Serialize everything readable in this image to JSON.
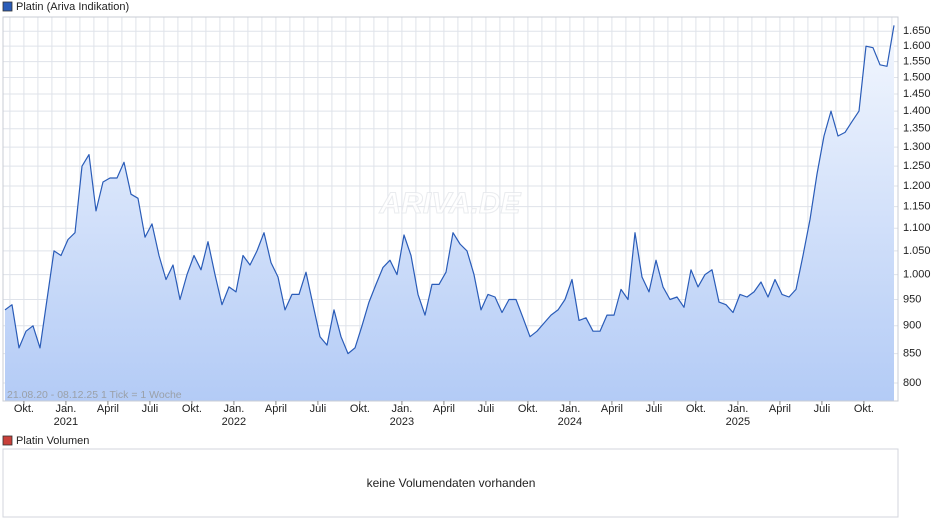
{
  "chart_data": {
    "type": "line",
    "log_scale": true,
    "grid": true,
    "note": "21.08.20 - 08.12.25   1 Tick = 1 Woche",
    "watermark": "ARIVA.DE",
    "series": [
      {
        "name": "Platin (Ariva Indikation)",
        "color": "#2a5cb8",
        "values": [
          930,
          940,
          860,
          890,
          900,
          860,
          950,
          1050,
          1040,
          1075,
          1090,
          1250,
          1280,
          1140,
          1210,
          1220,
          1220,
          1260,
          1180,
          1170,
          1080,
          1110,
          1040,
          990,
          1020,
          950,
          1000,
          1040,
          1010,
          1070,
          1000,
          940,
          975,
          965,
          1040,
          1020,
          1050,
          1090,
          1025,
          995,
          930,
          960,
          960,
          1005,
          940,
          880,
          865,
          930,
          880,
          850,
          860,
          900,
          945,
          980,
          1015,
          1030,
          1000,
          1085,
          1040,
          960,
          920,
          980,
          980,
          1005,
          1090,
          1065,
          1050,
          1000,
          930,
          960,
          955,
          925,
          950,
          950,
          915,
          880,
          890,
          905,
          920,
          930,
          950,
          990,
          910,
          915,
          890,
          890,
          920,
          920,
          970,
          950,
          1090,
          995,
          965,
          1030,
          975,
          950,
          955,
          935,
          1010,
          975,
          1000,
          1010,
          945,
          940,
          925,
          960,
          955,
          965,
          985,
          955,
          990,
          960,
          955,
          970,
          1040,
          1120,
          1230,
          1330,
          1400,
          1330,
          1340,
          1370,
          1400,
          1600,
          1595,
          1540,
          1535,
          1670
        ]
      }
    ],
    "xlim": [
      0,
      127
    ],
    "ylim": [
      771,
      1699
    ],
    "yticks": [
      800,
      850,
      900,
      950,
      {
        "value": 1000,
        "label": "1.000"
      },
      {
        "value": 1050,
        "label": "1.050"
      },
      {
        "value": 1100,
        "label": "1.100"
      },
      {
        "value": 1150,
        "label": "1.150"
      },
      {
        "value": 1200,
        "label": "1.200"
      },
      {
        "value": 1250,
        "label": "1.250"
      },
      {
        "value": 1300,
        "label": "1.300"
      },
      {
        "value": 1350,
        "label": "1.350"
      },
      {
        "value": 1400,
        "label": "1.400"
      },
      {
        "value": 1450,
        "label": "1.450"
      },
      {
        "value": 1500,
        "label": "1.500"
      },
      {
        "value": 1550,
        "label": "1.550"
      },
      {
        "value": 1600,
        "label": "1.600"
      },
      {
        "value": 1650,
        "label": "1.650"
      }
    ],
    "xticks": [
      {
        "value": 2.7,
        "label": "Okt."
      },
      {
        "value": 8.7,
        "label": "Jan."
      },
      {
        "value": 14.7,
        "label": "April"
      },
      {
        "value": 20.7,
        "label": "Juli"
      },
      {
        "value": 26.7,
        "label": "Okt."
      },
      {
        "value": 32.7,
        "label": "Jan."
      },
      {
        "value": 38.7,
        "label": "April"
      },
      {
        "value": 44.7,
        "label": "Juli"
      },
      {
        "value": 50.7,
        "label": "Okt."
      },
      {
        "value": 56.7,
        "label": "Jan."
      },
      {
        "value": 62.7,
        "label": "April"
      },
      {
        "value": 68.7,
        "label": "Juli"
      },
      {
        "value": 74.7,
        "label": "Okt."
      },
      {
        "value": 80.7,
        "label": "Jan."
      },
      {
        "value": 86.7,
        "label": "April"
      },
      {
        "value": 92.7,
        "label": "Juli"
      },
      {
        "value": 98.7,
        "label": "Okt."
      },
      {
        "value": 104.7,
        "label": "Jan."
      },
      {
        "value": 110.7,
        "label": "April"
      },
      {
        "value": 116.7,
        "label": "Juli"
      },
      {
        "value": 122.7,
        "label": "Okt."
      }
    ],
    "year_ticks": [
      {
        "value": 8.7,
        "label": "2021"
      },
      {
        "value": 32.7,
        "label": "2022"
      },
      {
        "value": 56.7,
        "label": "2023"
      },
      {
        "value": 80.7,
        "label": "2024"
      },
      {
        "value": 104.7,
        "label": "2025"
      }
    ],
    "volume_panel": {
      "title": "Platin Volumen",
      "message": "keine Volumendaten vorhanden",
      "color": "#c9403a"
    }
  }
}
